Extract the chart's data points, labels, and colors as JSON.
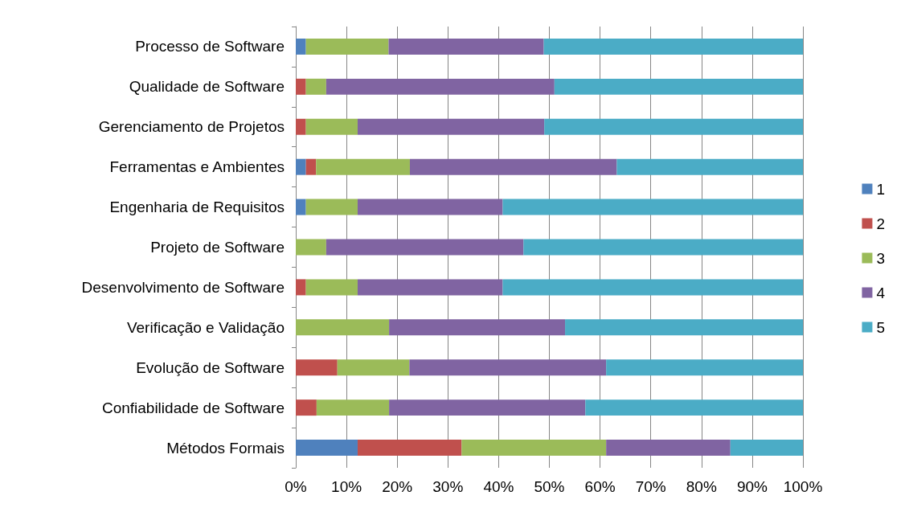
{
  "chart_data": {
    "type": "bar",
    "orientation": "horizontal",
    "stacked": true,
    "categories": [
      "Processo de Software",
      "Qualidade de Software",
      "Gerenciamento de Projetos",
      "Ferramentas e Ambientes",
      "Engenharia de Requisitos",
      "Projeto de Software",
      "Desenvolvimento de Software",
      "Verificação e Validação",
      "Evolução de Software",
      "Confiabilidade de Software",
      "Métodos Formais"
    ],
    "series": [
      {
        "name": "1",
        "color": "#4f81bd",
        "values": [
          2,
          0,
          0,
          2,
          2,
          0,
          0,
          0,
          0,
          0,
          12.2
        ]
      },
      {
        "name": "2",
        "color": "#c0504d",
        "values": [
          0,
          2,
          2,
          2,
          0,
          0,
          2,
          0,
          8.2,
          4.1,
          20.5
        ]
      },
      {
        "name": "3",
        "color": "#9bbb59",
        "values": [
          16.3,
          4,
          10.2,
          18.5,
          10.2,
          6,
          10.2,
          18.4,
          14.2,
          14.3,
          28.5
        ]
      },
      {
        "name": "4",
        "color": "#8064a2",
        "values": [
          30.6,
          45,
          36.8,
          40.8,
          28.6,
          38.9,
          28.6,
          34.7,
          38.8,
          38.7,
          24.5
        ]
      },
      {
        "name": "5",
        "color": "#4bacc6",
        "values": [
          51.1,
          49,
          51,
          36.7,
          59.2,
          55.1,
          59.2,
          46.9,
          38.8,
          42.9,
          14.3
        ]
      }
    ],
    "xlim": [
      0,
      100
    ],
    "xticks": [
      {
        "value": 0,
        "label": "0%"
      },
      {
        "value": 10,
        "label": "10%"
      },
      {
        "value": 20,
        "label": "20%"
      },
      {
        "value": 30,
        "label": "30%"
      },
      {
        "value": 40,
        "label": "40%"
      },
      {
        "value": 50,
        "label": "50%"
      },
      {
        "value": 60,
        "label": "60%"
      },
      {
        "value": 70,
        "label": "70%"
      },
      {
        "value": 80,
        "label": "80%"
      },
      {
        "value": 90,
        "label": "90%"
      },
      {
        "value": 100,
        "label": "100%"
      }
    ],
    "grid": "x",
    "legend": "right"
  }
}
